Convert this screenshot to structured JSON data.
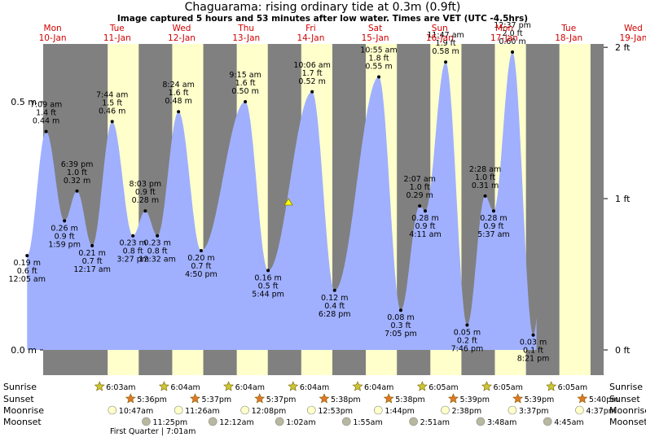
{
  "title": "Chaguarama: rising  ordinary tide at 0.3m (0.9ft)",
  "subtitle": "Image captured 5 hours and 53 minutes after low water. Times are VET (UTC -4.5hrs)",
  "colors": {
    "night": "#808080",
    "day": "#ffffcc",
    "water": "#a0b0ff",
    "day_header": "#d20000",
    "sun_icon": "#c8c832",
    "sunset_icon": "#e07828",
    "moon_icon": "#ffffc8",
    "moonset_icon": "#b8b8a0",
    "marker": "#ffff00"
  },
  "days": [
    {
      "dow": "Mon",
      "date": "10-Jan"
    },
    {
      "dow": "Tue",
      "date": "11-Jan"
    },
    {
      "dow": "Wed",
      "date": "12-Jan"
    },
    {
      "dow": "Thu",
      "date": "13-Jan"
    },
    {
      "dow": "Fri",
      "date": "14-Jan"
    },
    {
      "dow": "Sat",
      "date": "15-Jan"
    },
    {
      "dow": "Sun",
      "date": "16-Jan"
    },
    {
      "dow": "Mon",
      "date": "17-Jan"
    },
    {
      "dow": "Tue",
      "date": "18-Jan"
    },
    {
      "dow": "Wed",
      "date": "19-Jan"
    }
  ],
  "axes": {
    "left_ticks": [
      {
        "v": 0.0,
        "label": "0.0 m"
      },
      {
        "v": 0.5,
        "label": "0.5 m"
      }
    ],
    "right_ticks": [
      {
        "v": 0,
        "label": "0 ft"
      },
      {
        "v": 1,
        "label": "1 ft"
      },
      {
        "v": 2,
        "label": "2 ft"
      }
    ]
  },
  "row_labels": {
    "sunrise": "Sunrise",
    "sunset": "Sunset",
    "moonrise": "Moonrise",
    "moonset": "Moonset"
  },
  "sunrise": [
    "6:03am",
    "6:04am",
    "6:04am",
    "6:04am",
    "6:04am",
    "6:05am",
    "6:05am",
    "6:05am"
  ],
  "sunset": [
    "5:36pm",
    "5:37pm",
    "5:37pm",
    "5:38pm",
    "5:38pm",
    "5:39pm",
    "5:39pm",
    "5:40pm"
  ],
  "moonrise": [
    "10:47am",
    "11:26am",
    "12:08pm",
    "12:53pm",
    "1:44pm",
    "2:38pm",
    "3:37pm",
    "4:37pm"
  ],
  "moonset": [
    "11:25pm",
    "12:12am",
    "1:02am",
    "1:55am",
    "2:51am",
    "3:48am",
    "4:45am"
  ],
  "moon_phase": "First Quarter | 7:01am",
  "chart_data": {
    "type": "area",
    "x_unit": "hours from Mon 10-Jan 00:00 VET",
    "ylim_m": [
      0,
      0.62
    ],
    "current": {
      "time": "rising",
      "height_m": 0.3,
      "height_ft": 0.9
    },
    "tides": [
      {
        "t": 0.08,
        "m": 0.19,
        "ft": "0.6 ft",
        "m_label": "0.19 m",
        "time": "12:05 am"
      },
      {
        "t": 7.15,
        "m": 0.44,
        "ft": "1.4 ft",
        "m_label": "0.44 m",
        "time": "7:09 am"
      },
      {
        "t": 13.98,
        "m": 0.26,
        "ft": "0.9 ft",
        "m_label": "0.26 m",
        "time": "1:59 pm"
      },
      {
        "t": 18.65,
        "m": 0.32,
        "ft": "1.0 ft",
        "m_label": "0.32 m",
        "time": "6:39 pm"
      },
      {
        "t": 24.28,
        "m": 0.21,
        "ft": "0.7 ft",
        "m_label": "0.21 m",
        "time": "12:17 am"
      },
      {
        "t": 31.73,
        "m": 0.46,
        "ft": "1.5 ft",
        "m_label": "0.46 m",
        "time": "7:44 am"
      },
      {
        "t": 39.45,
        "m": 0.23,
        "ft": "0.8 ft",
        "m_label": "0.23 m",
        "time": "3:27 pm"
      },
      {
        "t": 44.05,
        "m": 0.28,
        "ft": "0.9 ft",
        "m_label": "0.28 m",
        "time": "8:03 pm"
      },
      {
        "t": 48.53,
        "m": 0.23,
        "ft": "0.8 ft",
        "m_label": "0.23 m",
        "time": "12:32 am"
      },
      {
        "t": 56.4,
        "m": 0.48,
        "ft": "1.6 ft",
        "m_label": "0.48 m",
        "time": "8:24 am"
      },
      {
        "t": 64.83,
        "m": 0.2,
        "ft": "0.7 ft",
        "m_label": "0.20 m",
        "time": "4:50 pm"
      },
      {
        "t": 81.25,
        "m": 0.5,
        "ft": "1.6 ft",
        "m_label": "0.50 m",
        "time": "9:15 am"
      },
      {
        "t": 89.73,
        "m": 0.16,
        "ft": "0.5 ft",
        "m_label": "0.16 m",
        "time": "5:44 pm"
      },
      {
        "t": 106.1,
        "m": 0.52,
        "ft": "1.7 ft",
        "m_label": "0.52 m",
        "time": "10:06 am"
      },
      {
        "t": 114.47,
        "m": 0.12,
        "ft": "0.4 ft",
        "m_label": "0.12 m",
        "time": "6:28 pm"
      },
      {
        "t": 130.92,
        "m": 0.55,
        "ft": "1.8 ft",
        "m_label": "0.55 m",
        "time": "10:55 am"
      },
      {
        "t": 139.08,
        "m": 0.08,
        "ft": "0.3 ft",
        "m_label": "0.08 m",
        "time": "7:05 pm"
      },
      {
        "t": 146.12,
        "m": 0.29,
        "ft": "1.0 ft",
        "m_label": "0.29 m",
        "time": "2:07 am"
      },
      {
        "t": 148.18,
        "m": 0.28,
        "ft": "0.9 ft",
        "m_label": "0.28 m",
        "time": "4:11 am"
      },
      {
        "t": 155.78,
        "m": 0.58,
        "ft": "1.9 ft",
        "m_label": "0.58 m",
        "time": "11:47 am"
      },
      {
        "t": 163.77,
        "m": 0.05,
        "ft": "0.2 ft",
        "m_label": "0.05 m",
        "time": "7:46 pm"
      },
      {
        "t": 170.47,
        "m": 0.31,
        "ft": "1.0 ft",
        "m_label": "0.31 m",
        "time": "2:28 am"
      },
      {
        "t": 173.62,
        "m": 0.28,
        "ft": "0.9 ft",
        "m_label": "0.28 m",
        "time": "5:37 am"
      },
      {
        "t": 180.62,
        "m": 0.6,
        "ft": "2.0 ft",
        "m_label": "0.60 m",
        "time": "12:37 pm"
      },
      {
        "t": 188.35,
        "m": 0.03,
        "ft": "0.1 ft",
        "m_label": "0.03 m",
        "time": "8:21 pm"
      }
    ]
  }
}
